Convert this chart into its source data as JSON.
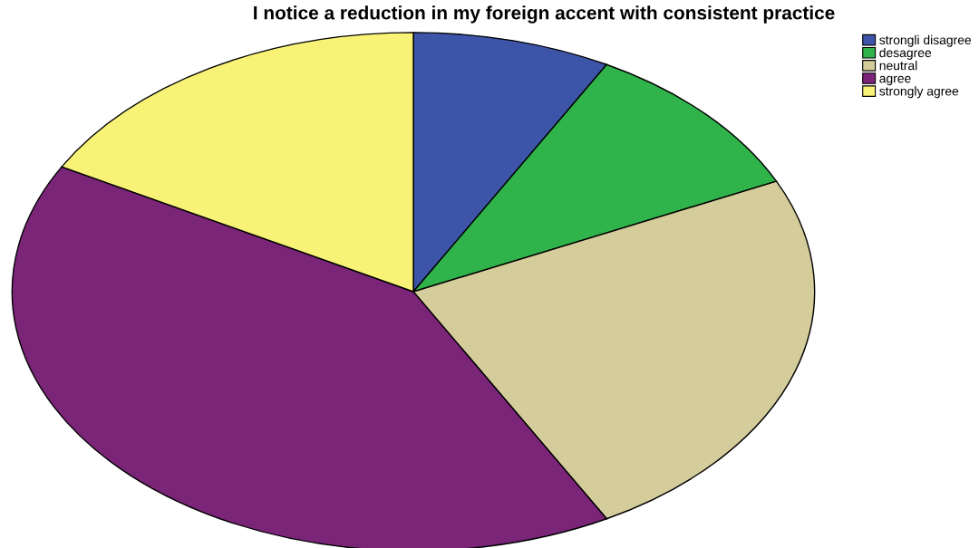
{
  "chart_data": {
    "type": "pie",
    "title": "I notice a reduction in my foreign accent with consistent practice",
    "categories": [
      "strongli disagree",
      "desagree",
      "neutral",
      "agree",
      "strongly agree"
    ],
    "values": [
      8,
      10,
      24,
      41,
      17
    ],
    "colors": [
      "#3d55a8",
      "#2fb34a",
      "#d4cc9a",
      "#7a2577",
      "#f8f377"
    ],
    "legend": "top right"
  }
}
